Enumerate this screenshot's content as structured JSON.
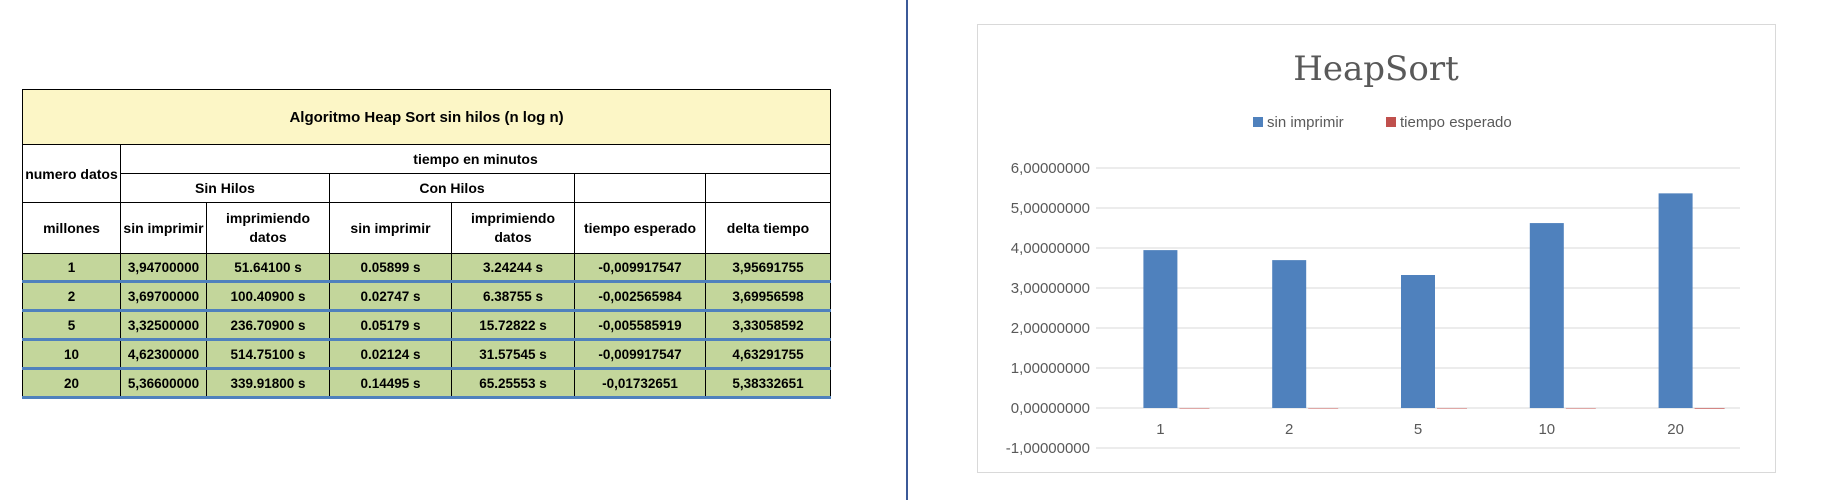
{
  "table": {
    "title": "Algoritmo Heap Sort sin hilos (n log n)",
    "row_header_top": "numero datos",
    "row_header_bottom": "millones",
    "group_header": "tiempo en minutos",
    "sin_hilos": "Sin Hilos",
    "con_hilos": "Con Hilos",
    "col_sin_imprimir": "sin imprimir",
    "col_imprimiendo": "imprimiendo datos",
    "col_tiempo_esperado": "tiempo esperado",
    "col_delta": "delta tiempo",
    "rows": [
      {
        "n": "1",
        "a": "3,94700000",
        "b": "51.64100 s",
        "c": "0.05899 s",
        "d": "3.24244 s",
        "e": "-0,009917547",
        "f": "3,95691755"
      },
      {
        "n": "2",
        "a": "3,69700000",
        "b": "100.40900 s",
        "c": "0.02747 s",
        "d": "6.38755 s",
        "e": "-0,002565984",
        "f": "3,69956598"
      },
      {
        "n": "5",
        "a": "3,32500000",
        "b": "236.70900 s",
        "c": "0.05179 s",
        "d": "15.72822 s",
        "e": "-0,005585919",
        "f": "3,33058592"
      },
      {
        "n": "10",
        "a": "4,62300000",
        "b": "514.75100 s",
        "c": "0.02124 s",
        "d": "31.57545 s",
        "e": "-0,009917547",
        "f": "4,63291755"
      },
      {
        "n": "20",
        "a": "5,36600000",
        "b": "339.91800 s",
        "c": "0.14495 s",
        "d": "65.25553 s",
        "e": "-0,01732651",
        "f": "5,38332651"
      }
    ]
  },
  "chart_data": {
    "type": "bar",
    "title": "HeapSort",
    "categories": [
      "1",
      "2",
      "5",
      "10",
      "20"
    ],
    "series": [
      {
        "name": "sin imprimir",
        "color": "#4f81bd",
        "values": [
          3.947,
          3.697,
          3.325,
          4.623,
          5.366
        ]
      },
      {
        "name": "tiempo esperado",
        "color": "#c0504d",
        "values": [
          -0.009917547,
          -0.002565984,
          -0.005585919,
          -0.009917547,
          -0.01732651
        ]
      }
    ],
    "y_ticks": [
      "6,00000000",
      "5,00000000",
      "4,00000000",
      "3,00000000",
      "2,00000000",
      "1,00000000",
      "0,00000000",
      "-1,00000000"
    ],
    "ylim": [
      -1,
      6
    ],
    "grid": true,
    "legend_position": "top"
  }
}
